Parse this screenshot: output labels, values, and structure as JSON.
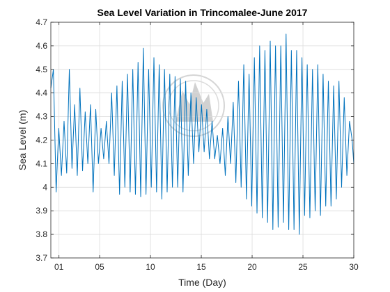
{
  "chart_data": {
    "type": "line",
    "title": "Sea Level Variation in Trincomalee-June 2017",
    "xlabel": "Time (Day)",
    "ylabel": "Sea Level (m)",
    "xlim": [
      0.2,
      30
    ],
    "ylim": [
      3.7,
      4.7
    ],
    "grid": true,
    "x_ticks": [
      1,
      5,
      10,
      15,
      20,
      25,
      30
    ],
    "x_tick_labels": [
      "01",
      "05",
      "10",
      "15",
      "20",
      "25",
      "30"
    ],
    "y_ticks": [
      3.7,
      3.8,
      3.9,
      4.0,
      4.1,
      4.2,
      4.3,
      4.4,
      4.5,
      4.6,
      4.7
    ],
    "y_tick_labels": [
      "3.7",
      "3.8",
      "3.9",
      "4",
      "4.1",
      "4.2",
      "4.3",
      "4.4",
      "4.5",
      "4.6",
      "4.7"
    ],
    "line_color": "#0072BD",
    "series": [
      {
        "x": [
          0.2,
          0.45,
          0.72,
          0.98,
          1.24,
          1.5,
          1.76,
          2.02,
          2.28,
          2.54,
          2.8,
          3.06,
          3.32,
          3.58,
          3.84,
          4.1,
          4.36,
          4.62,
          4.88,
          5.14,
          5.4,
          5.66,
          5.92,
          6.18,
          6.44,
          6.7,
          6.96,
          7.22,
          7.48,
          7.74,
          8.0,
          8.26,
          8.52,
          8.78,
          9.04,
          9.3,
          9.56,
          9.82,
          10.08,
          10.34,
          10.6,
          10.86,
          11.12,
          11.38,
          11.64,
          11.9,
          12.16,
          12.42,
          12.68,
          12.94,
          13.2,
          13.46,
          13.72,
          13.98,
          14.24,
          14.5,
          14.76,
          15.02,
          15.28,
          15.54,
          15.8,
          16.06,
          16.32,
          16.58,
          16.84,
          17.1,
          17.36,
          17.62,
          17.88,
          18.14,
          18.4,
          18.66,
          18.92,
          19.18,
          19.44,
          19.7,
          19.96,
          20.22,
          20.48,
          20.74,
          21.0,
          21.26,
          21.52,
          21.78,
          22.04,
          22.3,
          22.56,
          22.82,
          23.08,
          23.34,
          23.6,
          23.86,
          24.12,
          24.38,
          24.64,
          24.9,
          25.16,
          25.42,
          25.68,
          25.94,
          26.2,
          26.46,
          26.72,
          26.98,
          27.24,
          27.5,
          27.76,
          28.02,
          28.28,
          28.54,
          28.8,
          29.06,
          29.32,
          29.58,
          29.84,
          30.0
        ],
        "y": [
          4.42,
          4.5,
          3.98,
          4.25,
          4.05,
          4.28,
          4.06,
          4.5,
          4.08,
          4.35,
          4.05,
          4.42,
          4.07,
          4.32,
          4.1,
          4.35,
          3.98,
          4.33,
          4.1,
          4.25,
          4.12,
          4.28,
          4.1,
          4.4,
          4.05,
          4.43,
          3.97,
          4.45,
          4.0,
          4.48,
          3.98,
          4.5,
          3.97,
          4.53,
          3.96,
          4.59,
          3.97,
          4.5,
          4.0,
          4.55,
          3.98,
          4.52,
          3.95,
          4.5,
          3.98,
          4.48,
          4.0,
          4.47,
          4.0,
          4.46,
          3.98,
          4.45,
          4.05,
          4.4,
          4.1,
          4.38,
          4.15,
          4.35,
          4.15,
          4.33,
          4.12,
          4.28,
          4.12,
          4.22,
          4.1,
          4.25,
          4.05,
          4.3,
          4.1,
          4.36,
          4.02,
          4.45,
          4.0,
          4.52,
          3.95,
          4.48,
          3.92,
          4.55,
          3.89,
          4.6,
          3.87,
          4.58,
          3.85,
          4.62,
          3.82,
          4.6,
          3.83,
          4.6,
          3.85,
          4.65,
          3.82,
          4.58,
          3.82,
          4.58,
          3.8,
          4.55,
          3.88,
          4.52,
          3.87,
          4.5,
          3.9,
          4.52,
          3.88,
          4.48,
          3.92,
          4.45,
          3.92,
          4.43,
          3.95,
          4.45,
          4.0,
          4.38,
          4.05,
          4.28,
          4.2,
          4.1
        ]
      }
    ]
  }
}
